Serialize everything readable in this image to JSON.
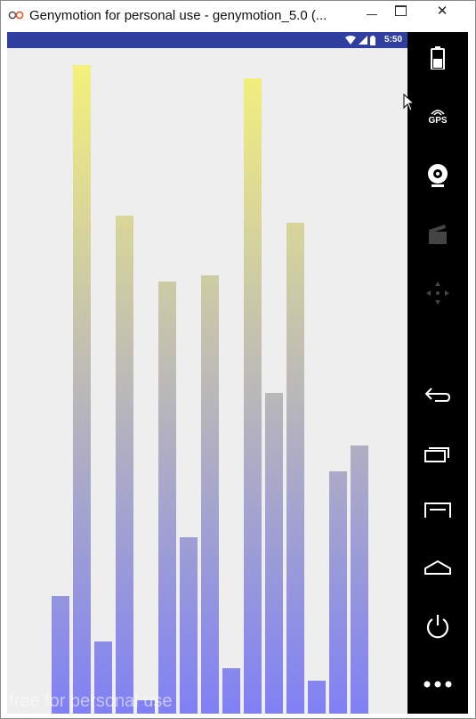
{
  "window": {
    "title": "Genymotion for personal use - genymotion_5.0 (...",
    "minimize_icon": "minimize-icon",
    "maximize_icon": "maximize-icon",
    "close_glyph": "✕"
  },
  "statusbar": {
    "time": "5:50",
    "icons": [
      "wifi-icon",
      "signal-icon",
      "battery-icon"
    ],
    "color": "#303f9f"
  },
  "screen": {
    "background": "#eeeeee",
    "watermark": "free for personal use"
  },
  "chart_data": {
    "type": "bar",
    "gradient": {
      "top": "#f5f27a",
      "bottom": "#8080f5"
    },
    "ylim": [
      0,
      100
    ],
    "values": [
      18,
      99,
      11,
      76,
      2,
      66,
      27,
      67,
      7,
      97,
      49,
      75,
      5,
      37,
      41
    ]
  },
  "toolbar": {
    "items": [
      "battery-widget-icon",
      "gps-widget-icon",
      "webcam-widget-icon",
      "capture-widget-icon",
      "dpad-widget-icon",
      "back-icon",
      "recent-apps-icon",
      "menu-icon",
      "home-icon",
      "power-icon",
      "more-icon"
    ],
    "gps_label": "GPS"
  }
}
